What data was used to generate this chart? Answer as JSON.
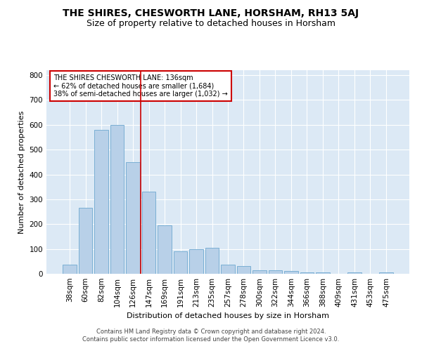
{
  "title": "THE SHIRES, CHESWORTH LANE, HORSHAM, RH13 5AJ",
  "subtitle": "Size of property relative to detached houses in Horsham",
  "xlabel": "Distribution of detached houses by size in Horsham",
  "ylabel": "Number of detached properties",
  "categories": [
    "38sqm",
    "60sqm",
    "82sqm",
    "104sqm",
    "126sqm",
    "147sqm",
    "169sqm",
    "191sqm",
    "213sqm",
    "235sqm",
    "257sqm",
    "278sqm",
    "300sqm",
    "322sqm",
    "344sqm",
    "366sqm",
    "388sqm",
    "409sqm",
    "431sqm",
    "453sqm",
    "475sqm"
  ],
  "values": [
    38,
    265,
    580,
    600,
    450,
    330,
    195,
    90,
    100,
    105,
    38,
    32,
    15,
    15,
    10,
    5,
    5,
    0,
    5,
    0,
    5
  ],
  "bar_color": "#b8d0e8",
  "bar_edge_color": "#7aafd4",
  "background_color": "#dce9f5",
  "vline_x_index": 4.5,
  "vline_color": "#cc0000",
  "annotation_text": "THE SHIRES CHESWORTH LANE: 136sqm\n← 62% of detached houses are smaller (1,684)\n38% of semi-detached houses are larger (1,032) →",
  "annotation_box_color": "#cc0000",
  "ylim": [
    0,
    820
  ],
  "yticks": [
    0,
    100,
    200,
    300,
    400,
    500,
    600,
    700,
    800
  ],
  "footer": "Contains HM Land Registry data © Crown copyright and database right 2024.\nContains public sector information licensed under the Open Government Licence v3.0.",
  "title_fontsize": 10,
  "subtitle_fontsize": 9,
  "axis_label_fontsize": 8,
  "tick_fontsize": 7.5,
  "annotation_fontsize": 7,
  "footer_fontsize": 6
}
